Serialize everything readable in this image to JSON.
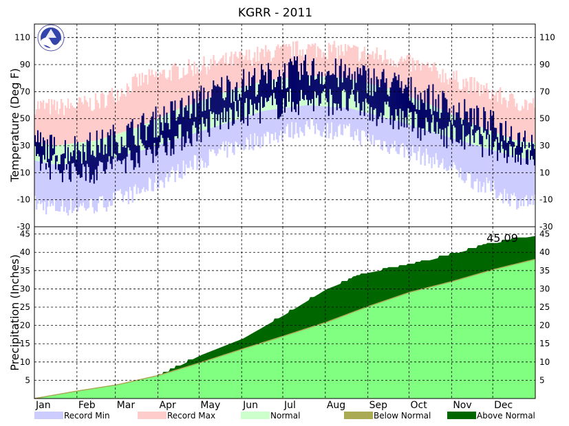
{
  "chart_data": {
    "type": "area",
    "title": "KGRR - 2011",
    "months": [
      "Jan",
      "Feb",
      "Mar",
      "Apr",
      "May",
      "Jun",
      "Jul",
      "Aug",
      "Sep",
      "Oct",
      "Nov",
      "Dec"
    ],
    "temperature_panel": {
      "ylabel": "Temperature (Deg F)",
      "ylim": [
        -30,
        120
      ],
      "ticks": [
        110,
        90,
        70,
        50,
        30,
        10,
        -10,
        -30
      ],
      "grid": true,
      "normal_high_by_month": [
        30,
        34,
        44,
        58,
        69,
        78,
        82,
        80,
        72,
        60,
        46,
        34
      ],
      "normal_low_by_month": [
        16,
        18,
        26,
        36,
        46,
        56,
        60,
        58,
        50,
        40,
        31,
        22
      ],
      "record_max_by_month": [
        58,
        62,
        78,
        86,
        92,
        98,
        102,
        100,
        95,
        86,
        74,
        62
      ],
      "record_min_by_month": [
        -16,
        -14,
        -4,
        12,
        26,
        36,
        44,
        40,
        30,
        20,
        4,
        -10
      ],
      "observed_high_by_month": [
        26,
        30,
        42,
        56,
        72,
        80,
        86,
        82,
        76,
        64,
        50,
        38
      ],
      "observed_low_by_month": [
        14,
        12,
        24,
        36,
        50,
        58,
        64,
        62,
        52,
        42,
        34,
        26
      ]
    },
    "precipitation_panel": {
      "ylabel": "Precipitation (Inches)",
      "ylim": [
        0,
        47
      ],
      "ticks": [
        45,
        40,
        35,
        30,
        25,
        20,
        15,
        10,
        5
      ],
      "grid": true,
      "annotation": "45.09",
      "observed_cumulative": [
        0,
        1.4,
        3.0,
        6.8,
        12.5,
        17.0,
        23.5,
        30.5,
        35.0,
        37.0,
        40.0,
        43.0,
        45.09
      ],
      "normal_cumulative": [
        0,
        2.0,
        3.8,
        6.4,
        9.9,
        13.6,
        17.2,
        20.9,
        25.2,
        29.1,
        32.0,
        35.3,
        38.1
      ]
    },
    "legend": [
      {
        "label": "Record Min",
        "color": "#ccccff"
      },
      {
        "label": "Record Max",
        "color": "#ffcccc"
      },
      {
        "label": "Normal",
        "color": "#ccffcc"
      },
      {
        "label": "Below Normal",
        "color": "#aaaa55"
      },
      {
        "label": "Above Normal",
        "color": "#006600"
      }
    ],
    "colors": {
      "observed_temp": "#000066",
      "normal_precip_fill": "#80ff80",
      "normal_precip_line": "#ffff00",
      "frame": "#000000",
      "grid": "#000000"
    }
  }
}
